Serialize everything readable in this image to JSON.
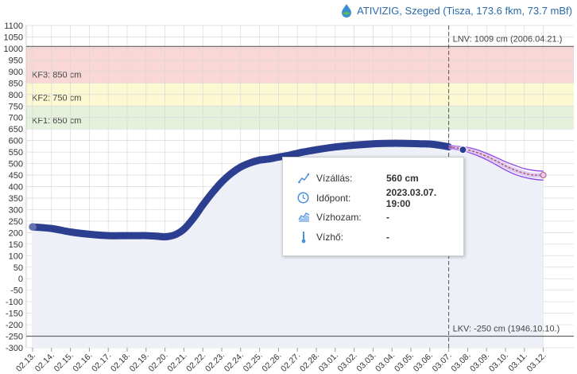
{
  "header": {
    "title": "ATIVIZIG, Szeged (Tisza, 173.6 fkm, 73.7 mBf)",
    "logo_icon": "drop-leaf-logo-icon"
  },
  "chart_data": {
    "type": "line",
    "title": "",
    "xlabel": "",
    "ylabel": "",
    "ylim": [
      -300,
      1100
    ],
    "y_ticks": [
      1100,
      1050,
      1000,
      950,
      900,
      850,
      800,
      750,
      700,
      650,
      600,
      550,
      500,
      450,
      400,
      350,
      300,
      250,
      200,
      150,
      100,
      50,
      0,
      -50,
      -100,
      -150,
      -200,
      -250,
      -300
    ],
    "x_ticks": [
      "02.13.",
      "02.14.",
      "02.15.",
      "02.16.",
      "02.17.",
      "02.18.",
      "02.19.",
      "02.20.",
      "02.21.",
      "02.22.",
      "02.23.",
      "02.24.",
      "02.25.",
      "02.26.",
      "02.27.",
      "02.28.",
      "03.01.",
      "03.02.",
      "03.03.",
      "03.04.",
      "03.05.",
      "03.06.",
      "03.07.",
      "03.08.",
      "03.09.",
      "03.10.",
      "03.11.",
      "03.12."
    ],
    "bands": [
      {
        "label": "KF3: 850 cm",
        "from": 850,
        "to": 1009,
        "color": "#f9d7d7"
      },
      {
        "label": "KF2: 750 cm",
        "from": 750,
        "to": 850,
        "color": "#fbf8d2"
      },
      {
        "label": "KF1: 650 cm",
        "from": 650,
        "to": 750,
        "color": "#e6f1dc"
      }
    ],
    "ref_lines": [
      {
        "label": "LNV: 1009 cm (2006.04.21.)",
        "value": 1009
      },
      {
        "label": "LKV: -250 cm (1946.10.10.)",
        "value": -250
      }
    ],
    "now_marker_day": 22.0,
    "measured": {
      "day": [
        0,
        1,
        2,
        3,
        4,
        5,
        5.5,
        6,
        6.5,
        7,
        7.5,
        8,
        8.5,
        9,
        9.5,
        10,
        10.5,
        11,
        11.5,
        12,
        12.5,
        13,
        13.5,
        14,
        15,
        16,
        17,
        18,
        19,
        19.5,
        20,
        20.5,
        21,
        21.5,
        22
      ],
      "value": [
        225,
        218,
        203,
        193,
        187,
        187,
        187,
        187,
        185,
        182,
        190,
        215,
        262,
        320,
        373,
        420,
        457,
        485,
        503,
        515,
        520,
        528,
        535,
        545,
        560,
        572,
        580,
        586,
        588,
        588,
        587,
        586,
        585,
        580,
        573
      ]
    },
    "forecast": {
      "day": [
        22,
        22.5,
        23,
        23.5,
        24,
        24.5,
        25,
        25.5,
        26,
        26.5,
        27
      ],
      "value": [
        573,
        567,
        560,
        548,
        532,
        512,
        490,
        472,
        458,
        450,
        450
      ],
      "upper": [
        578,
        575,
        570,
        560,
        545,
        527,
        508,
        492,
        478,
        470,
        467
      ],
      "lower": [
        568,
        560,
        550,
        535,
        517,
        495,
        472,
        453,
        440,
        432,
        428
      ]
    },
    "highlight_point": {
      "day": 22.75,
      "value": 560
    },
    "colors": {
      "measured": "#2c3e8f",
      "forecast_range": "#8e3fe8",
      "forecast_line": "#b05560",
      "area_fill": "#eef0f8",
      "grid": "#d9d9d9",
      "ref_line": "#666666"
    }
  },
  "tooltip": {
    "rows": [
      {
        "icon": "water-level-line-icon",
        "label": "Vízállás:",
        "value": "560 cm"
      },
      {
        "icon": "clock-icon",
        "label": "Időpont:",
        "value": "2023.03.07. 19:00"
      },
      {
        "icon": "discharge-chart-icon",
        "label": "Vízhozam:",
        "value": "-"
      },
      {
        "icon": "thermometer-icon",
        "label": "Vízhő:",
        "value": "-"
      }
    ]
  }
}
